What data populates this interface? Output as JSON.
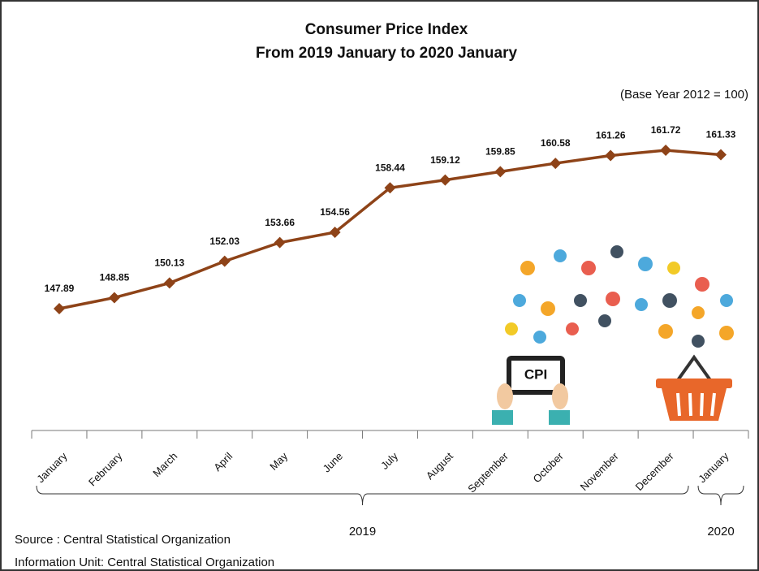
{
  "chart_data": {
    "type": "line",
    "title": "Consumer Price Index",
    "subtitle": "From 2019 January to 2020 January",
    "note": "(Base Year  2012 = 100)",
    "categories": [
      "January",
      "February",
      "March",
      "April",
      "May",
      "June",
      "July",
      "August",
      "September",
      "October",
      "November",
      "December",
      "January"
    ],
    "values": [
      147.89,
      148.85,
      150.13,
      152.03,
      153.66,
      154.56,
      158.44,
      159.12,
      159.85,
      160.58,
      161.26,
      161.72,
      161.33
    ],
    "color": "#8e4318",
    "year_labels": [
      "2019",
      "2020"
    ],
    "source": "Source :  Central Statistical Organization",
    "info": "Information Unit:  Central Statistical Organization",
    "image_text": "CPI"
  }
}
